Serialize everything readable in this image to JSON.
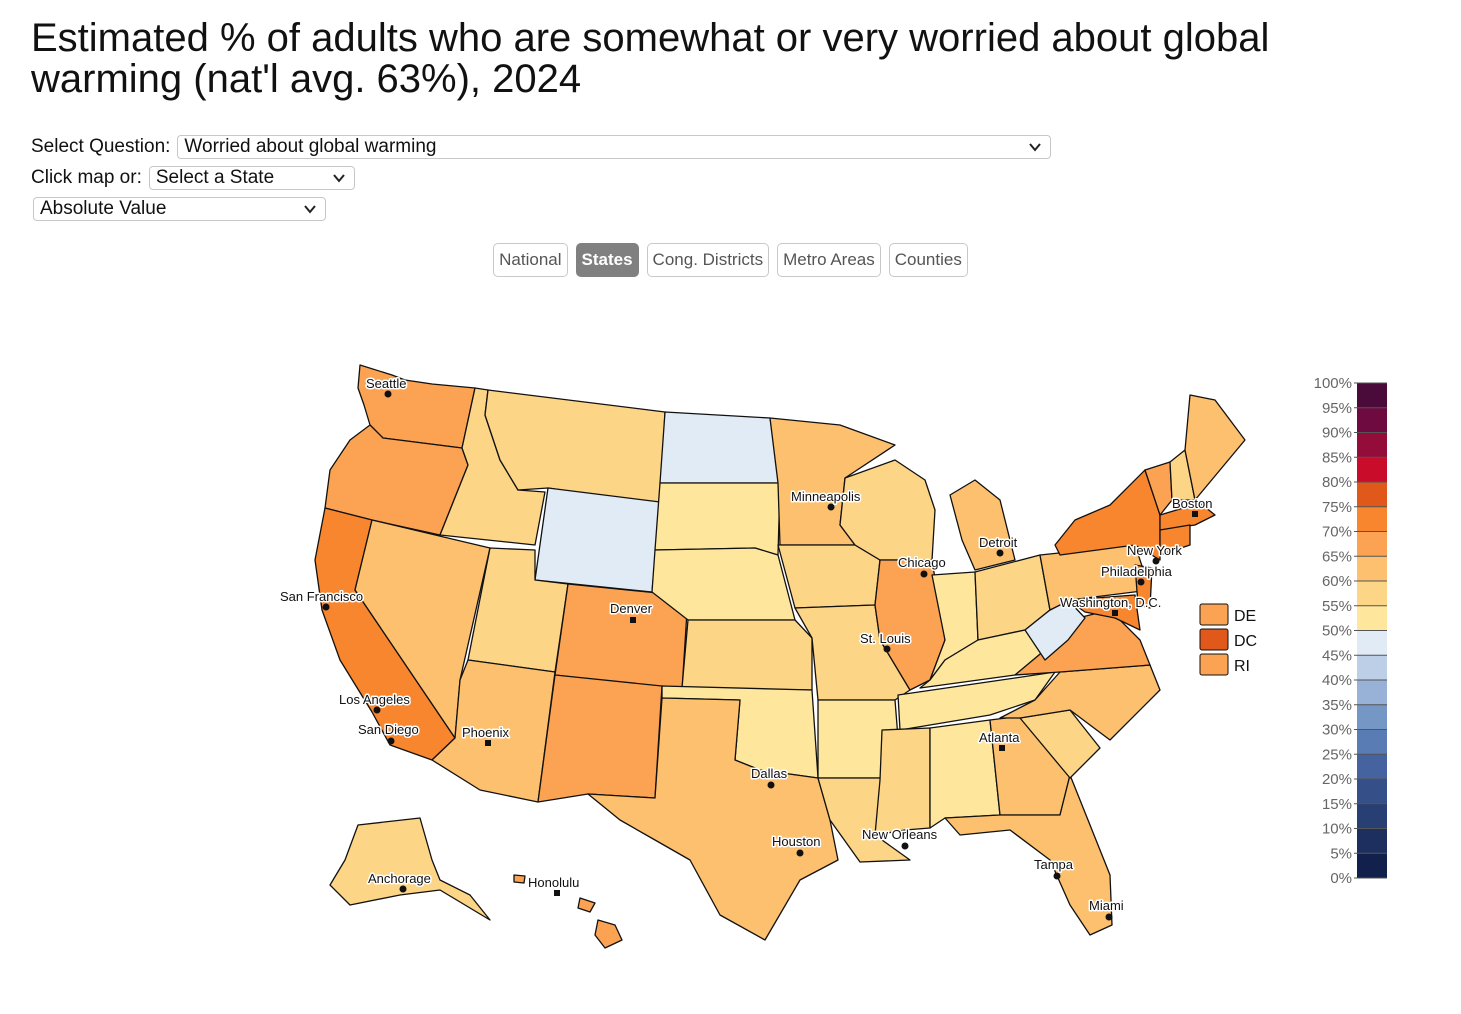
{
  "title": "Estimated % of adults who are somewhat or very worried about global warming (nat'l avg. 63%), 2024",
  "controls": {
    "question_label": "Select Question:",
    "question_value": "Worried about global warming",
    "state_label": "Click map or:",
    "state_value": "Select a State",
    "measure_value": "Absolute Value"
  },
  "tabs": [
    {
      "label": "National",
      "active": false
    },
    {
      "label": "States",
      "active": true
    },
    {
      "label": "Cong. Districts",
      "active": false
    },
    {
      "label": "Metro Areas",
      "active": false
    },
    {
      "label": "Counties",
      "active": false
    }
  ],
  "small_states": [
    {
      "abbr": "DE",
      "color": "#fba352"
    },
    {
      "abbr": "DC",
      "color": "#e0581a"
    },
    {
      "abbr": "RI",
      "color": "#fba352"
    }
  ],
  "legend": {
    "ticks": [
      "100%",
      "95%",
      "90%",
      "85%",
      "80%",
      "75%",
      "70%",
      "65%",
      "60%",
      "55%",
      "50%",
      "45%",
      "40%",
      "35%",
      "30%",
      "25%",
      "20%",
      "15%",
      "10%",
      "5%",
      "0%"
    ],
    "colors": [
      "#4a0a3a",
      "#6e0a3f",
      "#930c3a",
      "#c80c2a",
      "#e0581a",
      "#f7862e",
      "#fba352",
      "#fcc06e",
      "#fdd586",
      "#fee79c",
      "#e1ebf6",
      "#bccfe6",
      "#97b2d6",
      "#7597c6",
      "#5a7cb4",
      "#45649f",
      "#355089",
      "#273f73",
      "#1c2f5f",
      "#12204c"
    ]
  },
  "cities": [
    "Seattle",
    "San Francisco",
    "Los Angeles",
    "San Diego",
    "Phoenix",
    "Denver",
    "Minneapolis",
    "Chicago",
    "Detroit",
    "St. Louis",
    "Dallas",
    "Houston",
    "New Orleans",
    "Atlanta",
    "Tampa",
    "Miami",
    "Boston",
    "New York",
    "Philadelphia",
    "Washington, D.C.",
    "Anchorage",
    "Honolulu"
  ]
}
